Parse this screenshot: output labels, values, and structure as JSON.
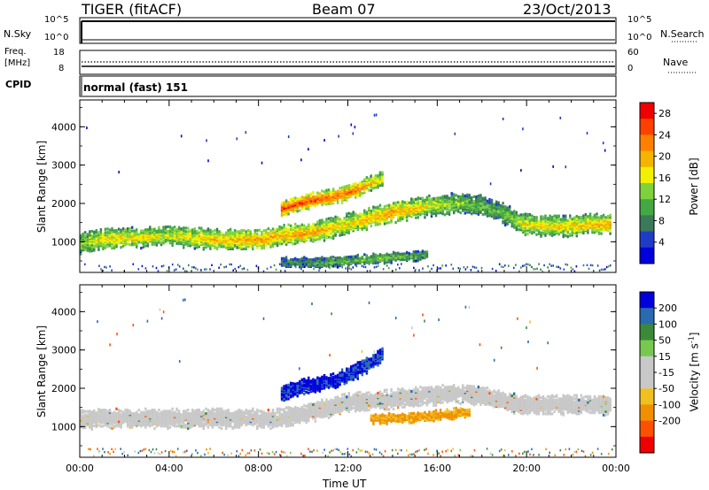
{
  "header": {
    "station": "TIGER (fitACF)",
    "beam": "Beam 07",
    "date": "23/Oct/2013"
  },
  "top_panels": {
    "nsky_label": "N.Sky",
    "nsky_ticks": [
      "10^5",
      "10^0"
    ],
    "nsearch_label": "N.Search",
    "nsearch_ticks": [
      "10^5",
      "10^0"
    ],
    "freq_label": "Freq.",
    "freq_unit": "[MHz]",
    "freq_ticks": [
      "18",
      "8"
    ],
    "nave_label": "Nave",
    "nave_ticks": [
      "60",
      "0"
    ],
    "cpid_label": "CPID",
    "cpid_value": "normal (fast) 151"
  },
  "colors": {
    "power_scale": [
      "#0000dd",
      "#1e3cc8",
      "#3a7a5a",
      "#44a844",
      "#7fd23c",
      "#f0f000",
      "#f5b400",
      "#ff8000",
      "#ff4000",
      "#ee0000"
    ],
    "velocity_scale": [
      "#0000dd",
      "#2a6ab0",
      "#3a8a3a",
      "#78c850",
      "#c8c8c8",
      "#c8c8c8",
      "#f0c020",
      "#f09000",
      "#ff5000",
      "#ee0000"
    ],
    "grey": "#c8c8c8"
  },
  "chart_data": [
    {
      "type": "heatmap",
      "title": "",
      "xlabel": "Time UT",
      "ylabel": "Slant Range [km]",
      "xlim": [
        "00:00",
        "24:00"
      ],
      "ylim": [
        200,
        4700
      ],
      "x_ticks": [
        "00:00",
        "04:00",
        "08:00",
        "12:00",
        "16:00",
        "20:00",
        "00:00"
      ],
      "y_ticks": [
        "1000",
        "2000",
        "3000",
        "4000"
      ],
      "colorbar": {
        "label": "Power [dB]",
        "ticks": [
          "4",
          "8",
          "12",
          "16",
          "20",
          "24",
          "28"
        ],
        "range": [
          0,
          30
        ]
      },
      "series": [
        {
          "band": "main",
          "t_start": 0.0,
          "t_end": 23.8,
          "range_km": [
            1000,
            1100,
            1150,
            1150,
            1200,
            1150,
            1100,
            1100,
            1100,
            1200,
            1250,
            1350,
            1500,
            1650,
            1800,
            1900,
            2000,
            2050,
            2000,
            1800,
            1500,
            1450,
            1450,
            1500,
            1500
          ],
          "power_db": [
            14,
            18,
            18,
            18,
            16,
            18,
            20,
            20,
            22,
            20,
            22,
            20,
            18,
            20,
            22,
            20,
            16,
            14,
            12,
            12,
            18,
            18,
            18,
            20,
            20
          ]
        },
        {
          "band": "upper",
          "t_start": 9.0,
          "t_end": 13.5,
          "range_km": [
            1900,
            2100,
            2200,
            2400,
            2700
          ],
          "power_db": [
            26,
            26,
            24,
            24,
            16
          ]
        },
        {
          "band": "low",
          "t_start": 9.0,
          "t_end": 15.5,
          "range_km": [
            500,
            500,
            500,
            550,
            600,
            650,
            700
          ],
          "power_db": [
            8,
            10,
            12,
            12,
            14,
            12,
            10
          ]
        }
      ]
    },
    {
      "type": "heatmap",
      "title": "",
      "xlabel": "Time UT",
      "ylabel": "Slant Range [km]",
      "xlim": [
        "00:00",
        "24:00"
      ],
      "ylim": [
        200,
        4700
      ],
      "x_ticks": [
        "00:00",
        "04:00",
        "08:00",
        "12:00",
        "16:00",
        "20:00",
        "00:00"
      ],
      "y_ticks": [
        "1000",
        "2000",
        "3000",
        "4000"
      ],
      "colorbar": {
        "label": "Velocity [m s^-1]",
        "ticks": [
          "200",
          "100",
          "50",
          "15",
          "-15",
          "-50",
          "-100",
          "-200"
        ],
        "range": [
          -250,
          250
        ]
      },
      "series": [
        {
          "band": "ground",
          "t_start": 0.0,
          "t_end": 23.8,
          "range_km": [
            1200,
            1250,
            1250,
            1250,
            1250,
            1250,
            1250,
            1250,
            1250,
            1250,
            1350,
            1500,
            1650,
            1700,
            1750,
            1800,
            1850,
            1900,
            1850,
            1700,
            1600,
            1600,
            1600,
            1600,
            1600
          ],
          "velocity": [
            0,
            0,
            0,
            0,
            0,
            0,
            0,
            0,
            0,
            0,
            0,
            0,
            0,
            0,
            0,
            0,
            0,
            0,
            0,
            0,
            0,
            0,
            0,
            0,
            0
          ]
        },
        {
          "band": "blue_patch",
          "t_start": 9.0,
          "t_end": 13.5,
          "range_km": [
            1900,
            2100,
            2200,
            2500,
            2900
          ],
          "velocity": [
            200,
            220,
            220,
            200,
            200
          ]
        },
        {
          "band": "orange_patch",
          "t_start": 13.0,
          "t_end": 17.5,
          "range_km": [
            1250,
            1250,
            1300,
            1350,
            1450
          ],
          "velocity": [
            -60,
            -60,
            -60,
            -60,
            -50
          ]
        }
      ]
    }
  ]
}
